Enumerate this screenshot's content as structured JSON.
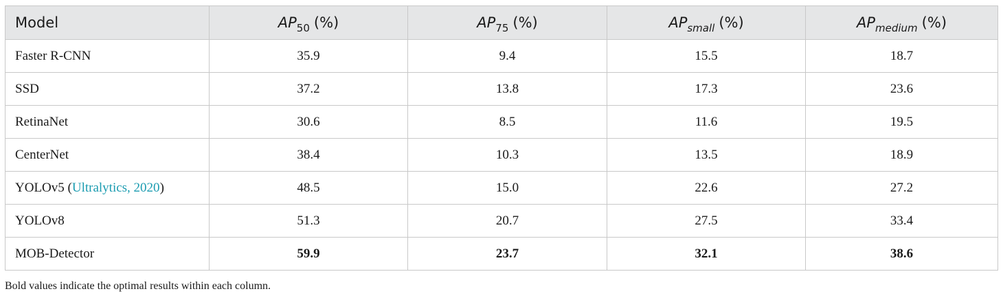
{
  "table": {
    "headers": {
      "model": "Model",
      "ap50": {
        "main": "AP",
        "sub": "50",
        "unit": "(%)"
      },
      "ap75": {
        "main": "AP",
        "sub": "75",
        "unit": "(%)"
      },
      "ap_small": {
        "main": "AP",
        "sub": "small",
        "unit": "(%)"
      },
      "ap_medium": {
        "main": "AP",
        "sub": "medium",
        "unit": "(%)"
      }
    },
    "rows": [
      {
        "model": "Faster R-CNN",
        "ap50": "35.9",
        "ap75": "9.4",
        "ap_small": "15.5",
        "ap_medium": "18.7"
      },
      {
        "model": "SSD",
        "ap50": "37.2",
        "ap75": "13.8",
        "ap_small": "17.3",
        "ap_medium": "23.6"
      },
      {
        "model": "RetinaNet",
        "ap50": "30.6",
        "ap75": "8.5",
        "ap_small": "11.6",
        "ap_medium": "19.5"
      },
      {
        "model": "CenterNet",
        "ap50": "38.4",
        "ap75": "10.3",
        "ap_small": "13.5",
        "ap_medium": "18.9"
      },
      {
        "model": "YOLOv5",
        "model_cite": "Ultralytics, 2020",
        "ap50": "48.5",
        "ap75": "15.0",
        "ap_small": "22.6",
        "ap_medium": "27.2"
      },
      {
        "model": "YOLOv8",
        "ap50": "51.3",
        "ap75": "20.7",
        "ap_small": "27.5",
        "ap_medium": "33.4"
      },
      {
        "model": "MOB-Detector",
        "ap50": "59.9",
        "ap75": "23.7",
        "ap_small": "32.1",
        "ap_medium": "38.6"
      }
    ]
  },
  "footnote": "Bold values indicate the optimal results within each column.",
  "colors": {
    "header_bg": "#e5e6e7",
    "border": "#c8c8c8",
    "citation": "#1a9bb0",
    "text": "#1a1a1a"
  }
}
